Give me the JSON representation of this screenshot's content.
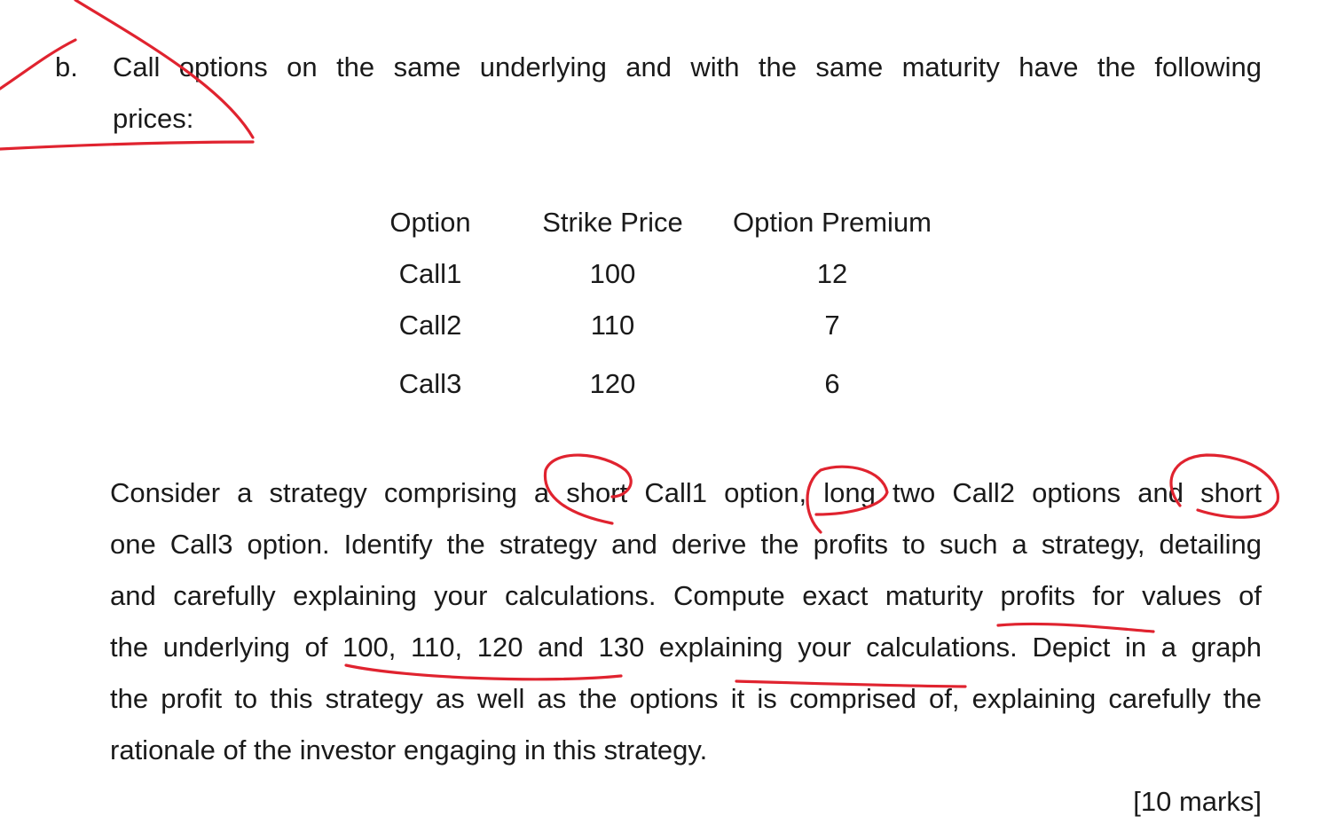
{
  "question": {
    "label": "b.",
    "intro_line1": "Call options on the same underlying and with the same maturity have the following",
    "intro_line2": "prices:"
  },
  "table": {
    "headers": [
      "Option",
      "Strike Price",
      "Option Premium"
    ],
    "rows": [
      [
        "Call1",
        "100",
        "12"
      ],
      [
        "Call2",
        "110",
        "7"
      ],
      [
        "Call3",
        "120",
        "6"
      ]
    ]
  },
  "body": {
    "lines": [
      "Consider a strategy comprising a short Call1 option, long two Call2 options and short",
      "one Call3 option. Identify the strategy and derive the profits to such a strategy, detailing",
      "and carefully explaining your calculations. Compute exact maturity profits for values of",
      "the underlying of 100, 110, 120 and 130 explaining your calculations. Depict in a graph",
      "the profit to this strategy as well as the options it is comprised of, explaining carefully the",
      "rationale of the investor engaging in this strategy."
    ],
    "marks": "[10 marks]"
  },
  "annotation_color": "#e0232f"
}
